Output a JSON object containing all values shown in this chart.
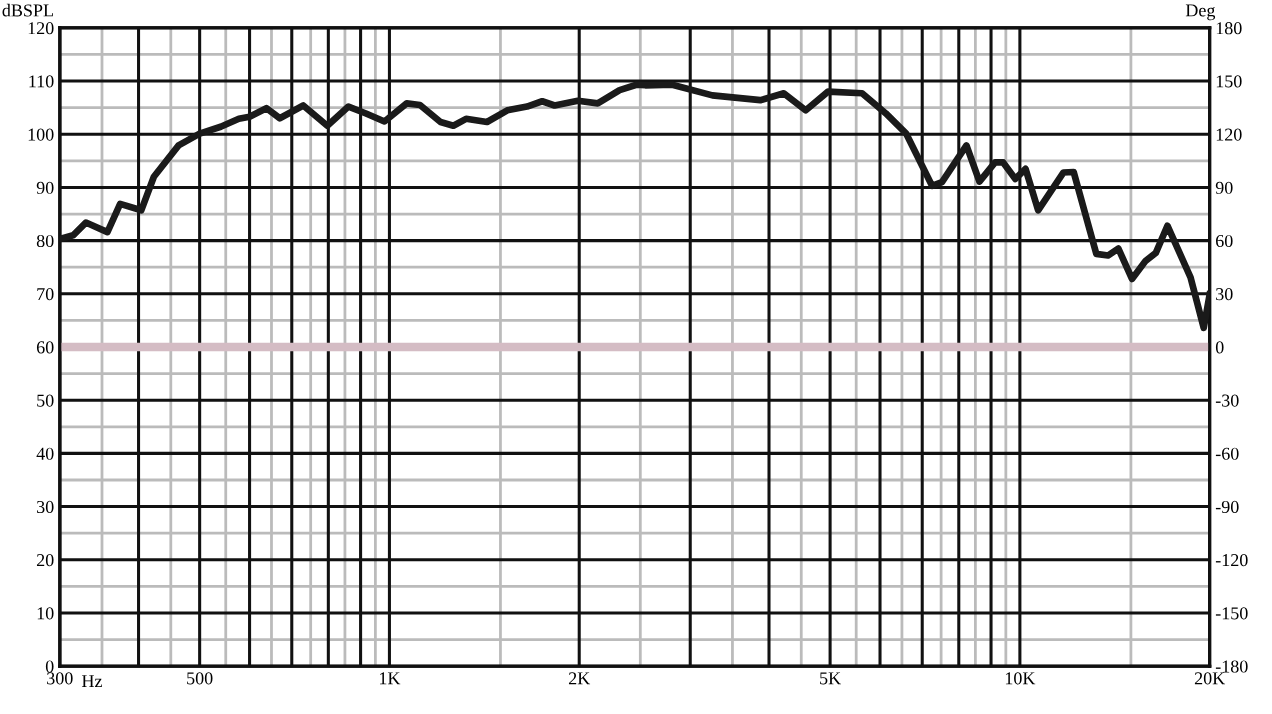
{
  "chart_data": {
    "type": "line",
    "ylabel": "dBSPL",
    "y2label": "Deg",
    "xlabel": "Hz",
    "log": "x",
    "grid": true,
    "legend": false,
    "marker": "none",
    "line_style": "solid",
    "xlim": [
      300,
      20000
    ],
    "xticks": [
      300,
      {
        "value": 350,
        "label": null
      },
      {
        "value": 400,
        "label": null
      },
      {
        "value": 450,
        "label": null
      },
      500,
      {
        "value": 550,
        "label": null
      },
      {
        "value": 600,
        "label": null
      },
      {
        "value": 650,
        "label": null
      },
      {
        "value": 700,
        "label": null
      },
      {
        "value": 750,
        "label": null
      },
      {
        "value": 800,
        "label": null
      },
      {
        "value": 850,
        "label": null
      },
      {
        "value": 900,
        "label": null
      },
      {
        "value": 950,
        "label": null
      },
      {
        "value": 1000,
        "label": "1K"
      },
      {
        "value": 1500,
        "label": null
      },
      {
        "value": 2000,
        "label": "2K"
      },
      {
        "value": 2500,
        "label": null
      },
      {
        "value": 3000,
        "label": null
      },
      {
        "value": 3500,
        "label": null
      },
      {
        "value": 4000,
        "label": null
      },
      {
        "value": 4500,
        "label": null
      },
      {
        "value": 5000,
        "label": "5K"
      },
      {
        "value": 5500,
        "label": null
      },
      {
        "value": 6000,
        "label": null
      },
      {
        "value": 6500,
        "label": null
      },
      {
        "value": 7000,
        "label": null
      },
      {
        "value": 7500,
        "label": null
      },
      {
        "value": 8000,
        "label": null
      },
      {
        "value": 8500,
        "label": null
      },
      {
        "value": 9000,
        "label": null
      },
      {
        "value": 9500,
        "label": null
      },
      {
        "value": 10000,
        "label": "10K"
      },
      {
        "value": 15000,
        "label": null
      },
      {
        "value": 20000,
        "label": "20K"
      }
    ],
    "ylim": [
      0,
      120
    ],
    "yticks": [
      0,
      {
        "value": 5,
        "label": null
      },
      10,
      {
        "value": 15,
        "label": null
      },
      20,
      {
        "value": 25,
        "label": null
      },
      30,
      {
        "value": 35,
        "label": null
      },
      40,
      {
        "value": 45,
        "label": null
      },
      50,
      {
        "value": 55,
        "label": null
      },
      60,
      {
        "value": 65,
        "label": null
      },
      70,
      {
        "value": 75,
        "label": null
      },
      80,
      {
        "value": 85,
        "label": null
      },
      90,
      {
        "value": 95,
        "label": null
      },
      100,
      {
        "value": 105,
        "label": null
      },
      110,
      {
        "value": 115,
        "label": null
      },
      120
    ],
    "y2lim": [
      -180,
      180
    ],
    "y2ticks": [
      -180,
      -150,
      -120,
      -90,
      -60,
      -30,
      0,
      30,
      60,
      90,
      120,
      150,
      180
    ],
    "ref_lines": [
      {
        "axis": "y2",
        "value": 0,
        "label": null,
        "color": "#d4bcc4"
      }
    ],
    "series": [
      {
        "color": "#1a1a1a",
        "x": [
          300,
          315,
          330,
          357,
          374,
          404,
          423,
          463,
          500,
          540,
          577,
          600,
          638,
          670,
          730,
          797,
          861,
          918,
          982,
          1065,
          1118,
          1205,
          1263,
          1323,
          1428,
          1538,
          1653,
          1747,
          1828,
          1990,
          2140,
          2318,
          2465,
          2546,
          2809,
          3253,
          3875,
          4223,
          4575,
          4962,
          5619,
          6130,
          6603,
          7255,
          7523,
          8227,
          8627,
          9134,
          9408,
          9836,
          10208,
          10690,
          11720,
          12170,
          13220,
          13800,
          14330,
          15060,
          15830,
          16430,
          17140,
          18650,
          19570,
          20000
        ],
        "values": [
          80.3,
          81.0,
          83.4,
          81.6,
          86.9,
          85.7,
          92.0,
          97.9,
          100.1,
          101.4,
          102.9,
          103.3,
          104.9,
          103.0,
          105.4,
          101.6,
          105.2,
          103.9,
          102.4,
          105.8,
          105.5,
          102.3,
          101.6,
          102.9,
          102.3,
          104.5,
          105.2,
          106.2,
          105.4,
          106.3,
          105.8,
          108.3,
          109.3,
          109.2,
          109.3,
          107.3,
          106.4,
          107.7,
          104.5,
          108.0,
          107.7,
          103.9,
          100.1,
          90.3,
          91.0,
          97.9,
          91.1,
          94.7,
          94.7,
          91.6,
          93.5,
          85.7,
          92.8,
          92.9,
          77.5,
          77.2,
          78.5,
          72.8,
          76.2,
          77.7,
          82.8,
          73.1,
          63.6,
          69.9
        ]
      }
    ]
  }
}
